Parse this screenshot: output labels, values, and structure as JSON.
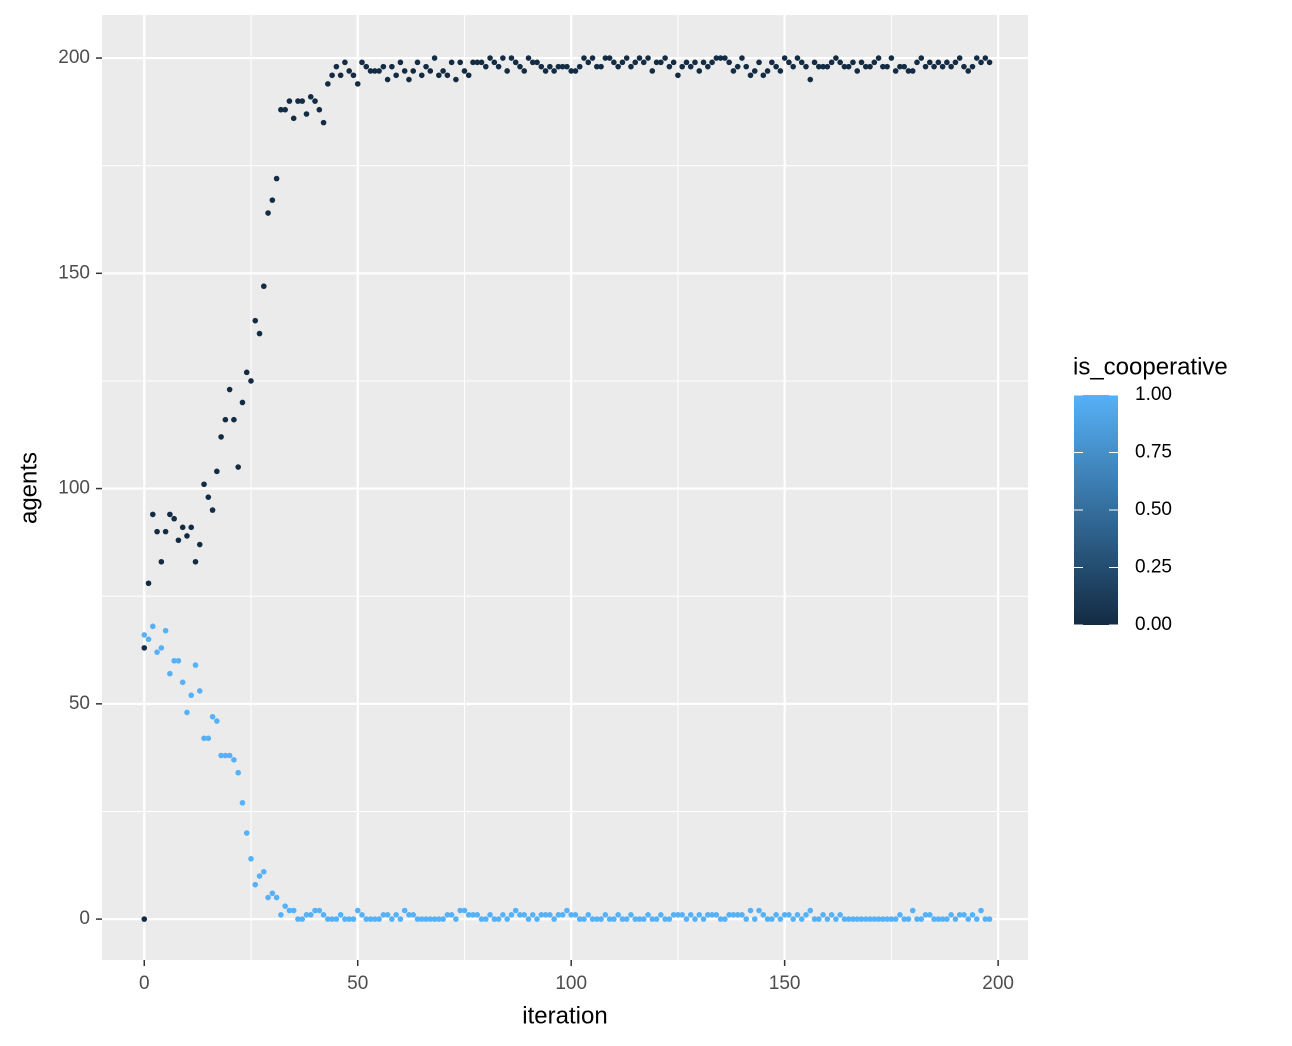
{
  "chart_data": {
    "type": "scatter",
    "xlabel": "iteration",
    "ylabel": "agents",
    "xlim": [
      -9.9,
      207
    ],
    "ylim": [
      -9.5,
      210
    ],
    "xticks": [
      0,
      50,
      100,
      150,
      200
    ],
    "yticks": [
      0,
      50,
      100,
      150,
      200
    ],
    "x_minor_ticks": [
      25,
      75,
      125,
      175
    ],
    "y_minor_ticks": [
      25,
      75,
      125,
      175
    ],
    "grid": true,
    "legend": {
      "title": "is_cooperative",
      "colors": [
        "#132B43",
        "#56B1F7"
      ],
      "lim": [
        0,
        1
      ],
      "ticks": [
        {
          "value": 0,
          "label": "0.00"
        },
        {
          "value": 0.25,
          "label": "0.25"
        },
        {
          "value": 0.5,
          "label": "0.50"
        },
        {
          "value": 0.75,
          "label": "0.75"
        },
        {
          "value": 1,
          "label": "1.00"
        }
      ]
    },
    "series": [
      {
        "color": "#132B43",
        "x": [
          0,
          0,
          1,
          2,
          3,
          4,
          5,
          6,
          7,
          8,
          9,
          10,
          11,
          12,
          13,
          14,
          15,
          16,
          17,
          18,
          19,
          20,
          21,
          22,
          23,
          24,
          25,
          26,
          27,
          28,
          29,
          30,
          31,
          32,
          33,
          34,
          35,
          36,
          37,
          38,
          39,
          40,
          41,
          42,
          43,
          44,
          45,
          46,
          47,
          48,
          49,
          50,
          51,
          52,
          53,
          54,
          55,
          56,
          57,
          58,
          59,
          60,
          61,
          62,
          63,
          64,
          65,
          66,
          67,
          68,
          69,
          70,
          71,
          72,
          73,
          74,
          75,
          76,
          77,
          78,
          79,
          80,
          81,
          82,
          83,
          84,
          85,
          86,
          87,
          88,
          89,
          90,
          91,
          92,
          93,
          94,
          95,
          96,
          97,
          98,
          99,
          100,
          101,
          102,
          103,
          104,
          105,
          106,
          107,
          108,
          109,
          110,
          111,
          112,
          113,
          114,
          115,
          116,
          117,
          118,
          119,
          120,
          121,
          122,
          123,
          124,
          125,
          126,
          127,
          128,
          129,
          130,
          131,
          132,
          133,
          134,
          135,
          136,
          137,
          138,
          139,
          140,
          141,
          142,
          143,
          144,
          145,
          146,
          147,
          148,
          149,
          150,
          151,
          152,
          153,
          154,
          155,
          156,
          157,
          158,
          159,
          160,
          161,
          162,
          163,
          164,
          165,
          166,
          167,
          168,
          169,
          170,
          171,
          172,
          173,
          174,
          175,
          176,
          177,
          178,
          179,
          180,
          181,
          182,
          183,
          184,
          185,
          186,
          187,
          188,
          189,
          190,
          191,
          192,
          193,
          194,
          195,
          196,
          197,
          198
        ],
        "values": [
          63,
          0,
          78,
          94,
          90,
          83,
          90,
          94,
          93,
          88,
          91,
          89,
          91,
          83,
          87,
          101,
          98,
          95,
          104,
          112,
          116,
          123,
          116,
          105,
          120,
          127,
          125,
          139,
          136,
          147,
          164,
          167,
          172,
          188,
          188,
          190,
          186,
          190,
          190,
          187,
          191,
          190,
          188,
          185,
          194,
          196,
          198,
          196,
          199,
          197,
          196,
          194,
          199,
          198,
          197,
          197,
          197,
          198,
          195,
          198,
          196,
          199,
          197,
          195,
          197,
          199,
          196,
          198,
          197,
          200,
          196,
          197,
          196,
          199,
          195,
          199,
          197,
          196,
          199,
          199,
          199,
          198,
          200,
          199,
          198,
          200,
          197,
          200,
          199,
          198,
          197,
          200,
          199,
          199,
          198,
          197,
          198,
          197,
          198,
          198,
          198,
          197,
          197,
          198,
          200,
          199,
          200,
          198,
          198,
          200,
          200,
          199,
          198,
          199,
          200,
          198,
          199,
          200,
          199,
          200,
          197,
          199,
          199,
          200,
          198,
          199,
          196,
          198,
          199,
          198,
          199,
          197,
          199,
          198,
          199,
          200,
          200,
          200,
          199,
          197,
          198,
          200,
          198,
          196,
          197,
          199,
          196,
          197,
          199,
          198,
          197,
          200,
          199,
          198,
          200,
          199,
          198,
          195,
          199,
          198,
          198,
          198,
          199,
          200,
          199,
          198,
          198,
          199,
          197,
          199,
          198,
          198,
          199,
          200,
          198,
          198,
          200,
          197,
          198,
          198,
          197,
          197,
          199,
          200,
          198,
          199,
          198,
          199,
          198,
          199,
          198,
          199,
          200,
          198,
          197,
          198,
          200,
          199,
          200,
          199
        ]
      },
      {
        "color": "#56B1F7",
        "x": [
          0,
          1,
          2,
          3,
          4,
          5,
          6,
          7,
          8,
          9,
          10,
          11,
          12,
          13,
          14,
          15,
          16,
          17,
          18,
          19,
          20,
          21,
          22,
          23,
          24,
          25,
          26,
          27,
          28,
          29,
          30,
          31,
          32,
          33,
          34,
          35,
          36,
          37,
          38,
          39,
          40,
          41,
          42,
          43,
          44,
          45,
          46,
          47,
          48,
          49,
          50,
          51,
          52,
          53,
          54,
          55,
          56,
          57,
          58,
          59,
          60,
          61,
          62,
          63,
          64,
          65,
          66,
          67,
          68,
          69,
          70,
          71,
          72,
          73,
          74,
          75,
          76,
          77,
          78,
          79,
          80,
          81,
          82,
          83,
          84,
          85,
          86,
          87,
          88,
          89,
          90,
          91,
          92,
          93,
          94,
          95,
          96,
          97,
          98,
          99,
          100,
          101,
          102,
          103,
          104,
          105,
          106,
          107,
          108,
          109,
          110,
          111,
          112,
          113,
          114,
          115,
          116,
          117,
          118,
          119,
          120,
          121,
          122,
          123,
          124,
          125,
          126,
          127,
          128,
          129,
          130,
          131,
          132,
          133,
          134,
          135,
          136,
          137,
          138,
          139,
          140,
          141,
          142,
          143,
          144,
          145,
          146,
          147,
          148,
          149,
          150,
          151,
          152,
          153,
          154,
          155,
          156,
          157,
          158,
          159,
          160,
          161,
          162,
          163,
          164,
          165,
          166,
          167,
          168,
          169,
          170,
          171,
          172,
          173,
          174,
          175,
          176,
          177,
          178,
          179,
          180,
          181,
          182,
          183,
          184,
          185,
          186,
          187,
          188,
          189,
          190,
          191,
          192,
          193,
          194,
          195,
          196,
          197,
          198
        ],
        "values": [
          66,
          65,
          68,
          62,
          63,
          67,
          57,
          60,
          60,
          55,
          48,
          52,
          59,
          53,
          42,
          42,
          47,
          46,
          38,
          38,
          38,
          37,
          34,
          27,
          20,
          14,
          8,
          10,
          11,
          5,
          6,
          5,
          1,
          3,
          2,
          2,
          0,
          0,
          1,
          1,
          2,
          2,
          1,
          0,
          0,
          0,
          1,
          0,
          0,
          0,
          2,
          1,
          0,
          0,
          0,
          0,
          1,
          1,
          0,
          1,
          0,
          2,
          1,
          1,
          0,
          0,
          0,
          0,
          0,
          0,
          0,
          1,
          1,
          0,
          2,
          2,
          1,
          1,
          1,
          0,
          0,
          1,
          0,
          0,
          1,
          0,
          1,
          2,
          1,
          1,
          0,
          1,
          0,
          1,
          1,
          1,
          0,
          1,
          1,
          2,
          1,
          1,
          0,
          0,
          1,
          0,
          0,
          0,
          1,
          0,
          0,
          1,
          0,
          0,
          1,
          0,
          0,
          0,
          1,
          0,
          0,
          1,
          0,
          0,
          1,
          1,
          1,
          0,
          1,
          0,
          1,
          0,
          1,
          1,
          1,
          0,
          0,
          1,
          1,
          1,
          1,
          0,
          2,
          0,
          2,
          1,
          0,
          0,
          1,
          0,
          1,
          1,
          0,
          1,
          0,
          1,
          2,
          0,
          0,
          1,
          0,
          1,
          0,
          1,
          0,
          0,
          0,
          0,
          0,
          0,
          0,
          0,
          0,
          0,
          0,
          0,
          0,
          1,
          0,
          0,
          2,
          0,
          0,
          1,
          1,
          0,
          0,
          0,
          0,
          1,
          0,
          1,
          1,
          0,
          1,
          0,
          2,
          0,
          0
        ]
      }
    ]
  }
}
